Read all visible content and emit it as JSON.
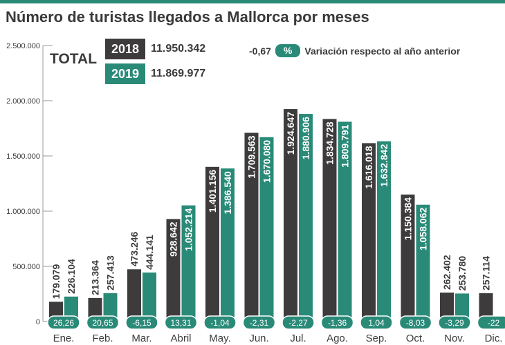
{
  "title": "Número de turistas llegados a Mallorca por meses",
  "legend": {
    "total_label": "TOTAL",
    "items": [
      {
        "year": "2018",
        "total": "11.950.342",
        "color": "#3d3b3c"
      },
      {
        "year": "2019",
        "total": "11.869.977",
        "color": "#2a8a78"
      }
    ],
    "variation_value": "-0,67",
    "variation_badge": "%",
    "variation_text": "Variación respecto al año anterior"
  },
  "chart_data": {
    "type": "bar",
    "title": "Número de turistas llegados a Mallorca por meses",
    "categories": [
      "Ene.",
      "Feb.",
      "Mar.",
      "Abril",
      "May.",
      "Jun.",
      "Jul.",
      "Ago.",
      "Sep.",
      "Oct.",
      "Nov.",
      "Dic."
    ],
    "series": [
      {
        "name": "2018",
        "values": [
          179079,
          213364,
          473246,
          928642,
          1401156,
          1709563,
          1924647,
          1834728,
          1616018,
          1150384,
          262402,
          257114
        ],
        "labels": [
          "179.079",
          "213.364",
          "473.246",
          "928.642",
          "1.401.156",
          "1.709.563",
          "1.924.647",
          "1.834.728",
          "1.616.018",
          "1.150.384",
          "262.402",
          "257.114"
        ]
      },
      {
        "name": "2019",
        "values": [
          226104,
          257413,
          444141,
          1052214,
          1386540,
          1670080,
          1880906,
          1809791,
          1632842,
          1058062,
          253780,
          null
        ],
        "labels": [
          "226.104",
          "257.413",
          "444.141",
          "1.052.214",
          "1.386.540",
          "1.670.080",
          "1.880.906",
          "1.809.791",
          "1.632.842",
          "1.058.062",
          "253.780",
          ""
        ]
      }
    ],
    "variation_pct": [
      "26,26",
      "20,65",
      "-6,15",
      "13,31",
      "-1,04",
      "-2,31",
      "-2,27",
      "-1,36",
      "1,04",
      "-8,03",
      "-3,29",
      "-22"
    ],
    "y_ticks": [
      "0",
      "500.000",
      "1.000.000",
      "1.500.000",
      "2.000.000",
      "2.500.000"
    ],
    "ylim": [
      0,
      2500000
    ],
    "grid": false,
    "legend_position": "top"
  }
}
